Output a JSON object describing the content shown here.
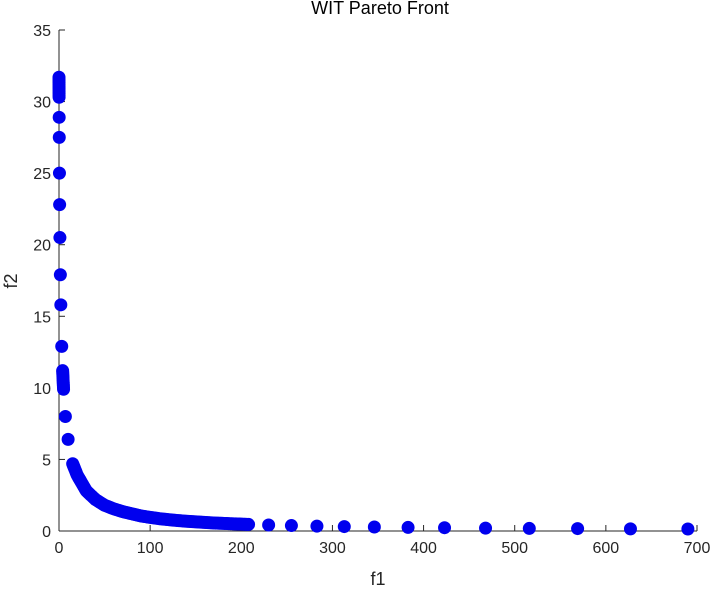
{
  "chart_data": {
    "type": "scatter",
    "title": "WIT Pareto Front",
    "xlabel": "f1",
    "ylabel": "f2",
    "xlim": [
      0,
      700
    ],
    "ylim": [
      0,
      35
    ],
    "xticks": [
      0,
      100,
      200,
      300,
      400,
      500,
      600,
      700
    ],
    "yticks": [
      0,
      5,
      10,
      15,
      20,
      25,
      30,
      35
    ],
    "grid": false,
    "marker_color": "#0000ee",
    "series": [
      {
        "curve": "f2 = 31.7 / (1 + f1 / 0.4)^0.9",
        "f1_max": 690,
        "point_count": 230,
        "points": [
          [
            0,
            31.7
          ],
          [
            0.05,
            31.2
          ],
          [
            0.1,
            30.3
          ],
          [
            0.2,
            28.9
          ],
          [
            0.3,
            27.5
          ],
          [
            0.5,
            25.0
          ],
          [
            0.7,
            22.8
          ],
          [
            1.0,
            20.5
          ],
          [
            1.5,
            17.9
          ],
          [
            2.0,
            15.8
          ],
          [
            3.0,
            12.9
          ],
          [
            4.0,
            11.2
          ],
          [
            5.0,
            9.9
          ],
          [
            7.0,
            8.0
          ],
          [
            10.0,
            6.4
          ],
          [
            15.0,
            4.7
          ],
          [
            20.0,
            3.9
          ],
          [
            30.0,
            2.8
          ],
          [
            40.0,
            2.2
          ],
          [
            50.0,
            1.8
          ],
          [
            60.0,
            1.55
          ],
          [
            70.0,
            1.35
          ],
          [
            80.0,
            1.2
          ],
          [
            90.0,
            1.05
          ],
          [
            100.0,
            0.95
          ],
          [
            110.0,
            0.86
          ],
          [
            125.0,
            0.76
          ],
          [
            140.0,
            0.68
          ],
          [
            155.0,
            0.62
          ],
          [
            170.0,
            0.56
          ],
          [
            188.0,
            0.51
          ],
          [
            208.0,
            0.46
          ],
          [
            230.0,
            0.42
          ],
          [
            255.0,
            0.38
          ],
          [
            283.0,
            0.34
          ],
          [
            313.0,
            0.31
          ],
          [
            346.0,
            0.28
          ],
          [
            383.0,
            0.25
          ],
          [
            423.0,
            0.23
          ],
          [
            468.0,
            0.2
          ],
          [
            516.0,
            0.18
          ],
          [
            569.0,
            0.17
          ],
          [
            627.0,
            0.15
          ],
          [
            690.0,
            0.14
          ]
        ]
      }
    ]
  }
}
